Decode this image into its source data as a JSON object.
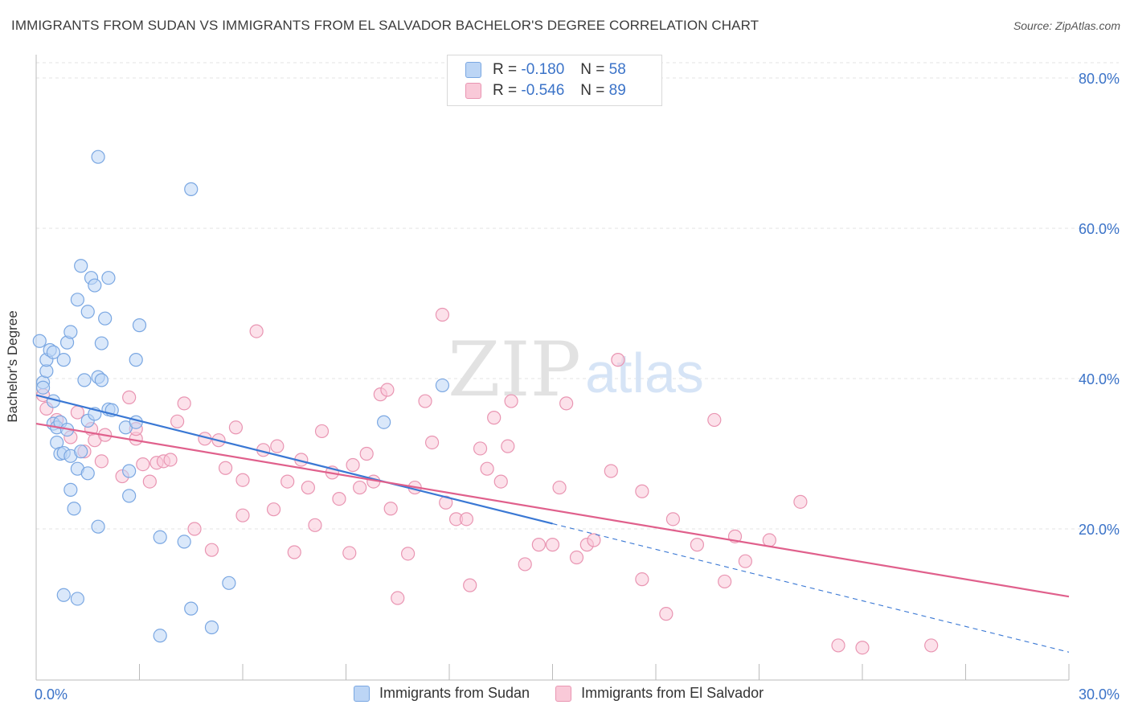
{
  "title": "IMMIGRANTS FROM SUDAN VS IMMIGRANTS FROM EL SALVADOR BACHELOR'S DEGREE CORRELATION CHART",
  "source": "Source: ZipAtlas.com",
  "watermark": {
    "zip": "ZIP",
    "atlas": "atlas"
  },
  "legend": {
    "rows": [
      {
        "r_label": "R =",
        "r_value": "-0.180",
        "n_label": "N =",
        "n_value": "58"
      },
      {
        "r_label": "R =",
        "r_value": "-0.546",
        "n_label": "N =",
        "n_value": "89"
      }
    ]
  },
  "colors": {
    "blue_fill": "#bcd5f5",
    "blue_stroke": "#7aa7e2",
    "blue_line": "#3a78d4",
    "pink_fill": "#f9c9d8",
    "pink_stroke": "#e995b2",
    "pink_line": "#e0608c",
    "tick_color": "#3b73c8",
    "grid": "#e3e3e3"
  },
  "chart_data": {
    "type": "scatter",
    "title": "IMMIGRANTS FROM SUDAN VS IMMIGRANTS FROM EL SALVADOR BACHELOR'S DEGREE CORRELATION CHART",
    "xlabel": "",
    "ylabel": "Bachelor's Degree",
    "xlim": [
      0,
      30
    ],
    "ylim": [
      0,
      80
    ],
    "x_tick_labels": [
      "0.0%",
      "30.0%"
    ],
    "y_ticks": [
      20,
      40,
      60,
      80
    ],
    "y_tick_labels": [
      "20.0%",
      "40.0%",
      "60.0%",
      "80.0%"
    ],
    "legend_position": "top-center",
    "series": [
      {
        "name": "Immigrants from Sudan",
        "r": -0.18,
        "n": 58,
        "trend": {
          "x0": 0,
          "y0": 37.8,
          "x1": 15,
          "y1": 20.7,
          "x_end": 30,
          "y_end": 3.6
        },
        "points": [
          [
            0.1,
            45
          ],
          [
            0.2,
            39.5
          ],
          [
            0.2,
            38.8
          ],
          [
            0.3,
            41
          ],
          [
            0.3,
            42.5
          ],
          [
            0.4,
            43.8
          ],
          [
            0.5,
            43.5
          ],
          [
            0.5,
            37
          ],
          [
            0.5,
            34
          ],
          [
            0.6,
            33.5
          ],
          [
            0.6,
            31.5
          ],
          [
            0.7,
            30
          ],
          [
            0.7,
            34.2
          ],
          [
            0.8,
            42.5
          ],
          [
            0.8,
            30.1
          ],
          [
            0.9,
            44.8
          ],
          [
            0.9,
            33.2
          ],
          [
            1.0,
            29.7
          ],
          [
            1.0,
            46.2
          ],
          [
            1.0,
            25.2
          ],
          [
            1.1,
            22.7
          ],
          [
            1.2,
            50.5
          ],
          [
            1.2,
            28
          ],
          [
            1.3,
            55
          ],
          [
            1.3,
            30.3
          ],
          [
            1.4,
            39.8
          ],
          [
            1.5,
            48.9
          ],
          [
            1.5,
            27.4
          ],
          [
            1.5,
            34.4
          ],
          [
            1.6,
            53.4
          ],
          [
            1.7,
            52.4
          ],
          [
            1.7,
            35.3
          ],
          [
            1.8,
            69.5
          ],
          [
            1.8,
            40.2
          ],
          [
            1.8,
            20.3
          ],
          [
            1.9,
            39.8
          ],
          [
            1.9,
            44.7
          ],
          [
            2.0,
            48
          ],
          [
            2.1,
            53.4
          ],
          [
            2.1,
            35.9
          ],
          [
            2.2,
            35.8
          ],
          [
            2.6,
            33.5
          ],
          [
            2.7,
            24.4
          ],
          [
            2.7,
            27.7
          ],
          [
            2.9,
            34.2
          ],
          [
            2.9,
            42.5
          ],
          [
            3.0,
            47.1
          ],
          [
            3.6,
            18.9
          ],
          [
            3.6,
            5.8
          ],
          [
            4.3,
            18.3
          ],
          [
            4.5,
            65.2
          ],
          [
            4.5,
            9.4
          ],
          [
            5.1,
            6.9
          ],
          [
            5.6,
            12.8
          ],
          [
            0.8,
            11.2
          ],
          [
            1.2,
            10.7
          ],
          [
            10.1,
            34.2
          ],
          [
            11.8,
            39.1
          ]
        ]
      },
      {
        "name": "Immigrants from El Salvador",
        "r": -0.546,
        "n": 89,
        "trend": {
          "x0": 0,
          "y0": 34,
          "x1": 30,
          "y1": 11
        },
        "points": [
          [
            0.2,
            37.8
          ],
          [
            0.3,
            36
          ],
          [
            0.6,
            34.5
          ],
          [
            1.0,
            32.2
          ],
          [
            1.2,
            35.5
          ],
          [
            1.4,
            30.3
          ],
          [
            1.6,
            33.3
          ],
          [
            1.7,
            31.8
          ],
          [
            1.9,
            29
          ],
          [
            2.0,
            32.5
          ],
          [
            2.5,
            27
          ],
          [
            2.7,
            37.5
          ],
          [
            2.9,
            32
          ],
          [
            2.9,
            33.3
          ],
          [
            3.1,
            28.6
          ],
          [
            3.3,
            26.3
          ],
          [
            3.5,
            28.8
          ],
          [
            3.7,
            29
          ],
          [
            3.9,
            29.2
          ],
          [
            4.1,
            34.3
          ],
          [
            4.3,
            36.7
          ],
          [
            4.6,
            20
          ],
          [
            4.9,
            32
          ],
          [
            5.1,
            17.2
          ],
          [
            5.3,
            31.8
          ],
          [
            5.5,
            28.1
          ],
          [
            5.8,
            33.5
          ],
          [
            6.0,
            26.5
          ],
          [
            6.0,
            21.8
          ],
          [
            6.4,
            46.3
          ],
          [
            6.6,
            30.5
          ],
          [
            6.9,
            22.6
          ],
          [
            7.0,
            31
          ],
          [
            7.3,
            26.3
          ],
          [
            7.5,
            16.9
          ],
          [
            7.7,
            29.2
          ],
          [
            7.9,
            25.5
          ],
          [
            8.1,
            20.5
          ],
          [
            8.3,
            33
          ],
          [
            8.6,
            27.5
          ],
          [
            8.8,
            24
          ],
          [
            9.1,
            16.8
          ],
          [
            9.2,
            28.5
          ],
          [
            9.4,
            25.5
          ],
          [
            9.6,
            30
          ],
          [
            9.8,
            26.3
          ],
          [
            10.0,
            37.9
          ],
          [
            10.2,
            38.5
          ],
          [
            10.3,
            22.7
          ],
          [
            10.5,
            10.8
          ],
          [
            10.8,
            16.7
          ],
          [
            11.0,
            25.5
          ],
          [
            11.3,
            37
          ],
          [
            11.5,
            31.5
          ],
          [
            11.8,
            48.5
          ],
          [
            11.9,
            23.5
          ],
          [
            12.2,
            21.3
          ],
          [
            12.5,
            21.3
          ],
          [
            12.6,
            12.5
          ],
          [
            12.9,
            30.7
          ],
          [
            13.1,
            28
          ],
          [
            13.3,
            34.8
          ],
          [
            13.5,
            26.3
          ],
          [
            13.7,
            31
          ],
          [
            13.8,
            37
          ],
          [
            14.2,
            15.3
          ],
          [
            14.6,
            17.9
          ],
          [
            15.0,
            17.9
          ],
          [
            15.2,
            25.5
          ],
          [
            15.4,
            36.7
          ],
          [
            15.7,
            16.2
          ],
          [
            16.0,
            17.9
          ],
          [
            16.2,
            18.5
          ],
          [
            16.7,
            27.7
          ],
          [
            16.9,
            42.5
          ],
          [
            17.6,
            13.3
          ],
          [
            17.6,
            25
          ],
          [
            18.3,
            8.7
          ],
          [
            18.5,
            21.3
          ],
          [
            19.2,
            17.9
          ],
          [
            19.7,
            34.5
          ],
          [
            20.0,
            13
          ],
          [
            20.3,
            19
          ],
          [
            20.6,
            15.7
          ],
          [
            21.3,
            18.5
          ],
          [
            22.2,
            23.6
          ],
          [
            23.3,
            4.5
          ],
          [
            24.0,
            4.2
          ],
          [
            26.0,
            4.5
          ]
        ]
      }
    ]
  }
}
